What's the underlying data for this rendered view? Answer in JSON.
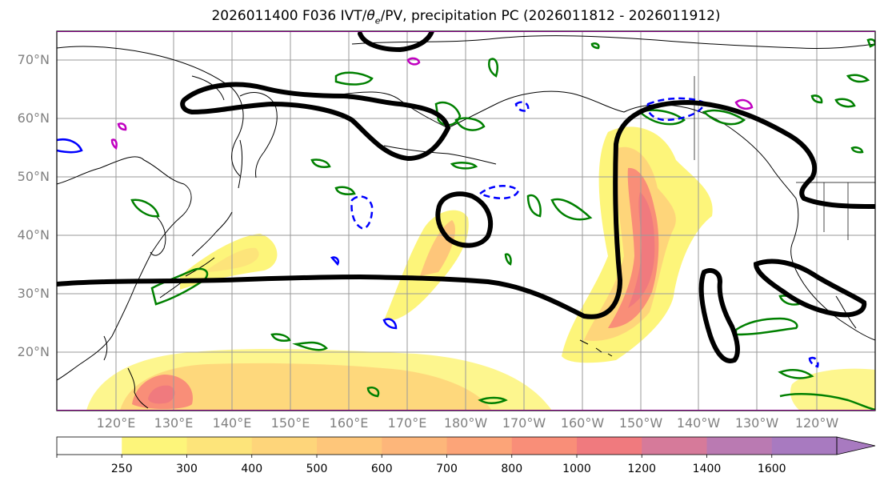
{
  "title_prefix": "2026011400 F036 IVT/",
  "title_theta": "θ",
  "title_sub": "e",
  "title_suffix": "/PV, precipitation PC (2026011812 - 2026011912)",
  "lat_labels": [
    "70°N",
    "60°N",
    "50°N",
    "40°N",
    "30°N",
    "20°N"
  ],
  "lon_labels": [
    "120°E",
    "130°E",
    "140°E",
    "150°E",
    "160°E",
    "170°E",
    "180°W",
    "170°W",
    "160°W",
    "150°W",
    "140°W",
    "130°W",
    "120°W"
  ],
  "colorbar": {
    "ticks": [
      "250",
      "300",
      "400",
      "500",
      "600",
      "700",
      "800",
      "1000",
      "1200",
      "1400",
      "1600"
    ],
    "colors": [
      "#ffffff",
      "#fdf57a",
      "#fde47a",
      "#fed57a",
      "#fec67a",
      "#fdb67a",
      "#fca478",
      "#f98e78",
      "#f07a7e",
      "#d67a9a",
      "#ba7ab2",
      "#a87ac0"
    ]
  },
  "legend_colors": {
    "ivt_contour": "#000000",
    "theta_e_contour": "#008000",
    "pv_positive": "#0000ff",
    "pv_other": "#c000c0"
  }
}
